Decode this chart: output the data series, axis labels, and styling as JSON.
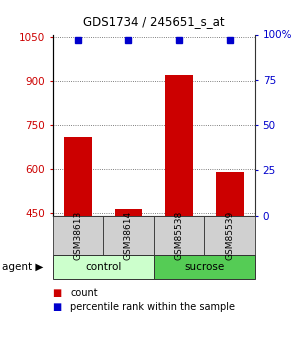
{
  "title": "GDS1734 / 245651_s_at",
  "samples": [
    "GSM38613",
    "GSM38614",
    "GSM85538",
    "GSM85539"
  ],
  "groups": [
    "control",
    "control",
    "sucrose",
    "sucrose"
  ],
  "counts": [
    710,
    463,
    920,
    590
  ],
  "percentile_ranks": [
    97,
    97,
    97,
    97
  ],
  "ylim_left": [
    440,
    1060
  ],
  "ylim_right": [
    0,
    100
  ],
  "yticks_left": [
    450,
    600,
    750,
    900,
    1050
  ],
  "yticks_right": [
    0,
    25,
    50,
    75,
    100
  ],
  "bar_color": "#cc0000",
  "dot_color": "#0000cc",
  "group_colors": {
    "control": "#ccffcc",
    "sucrose": "#55cc55"
  },
  "label_count": "count",
  "label_pct": "percentile rank within the sample",
  "agent_label": "agent",
  "bar_width": 0.55,
  "background_color": "#ffffff",
  "sample_box_color": "#d0d0d0",
  "sample_box_edge": "#333333"
}
